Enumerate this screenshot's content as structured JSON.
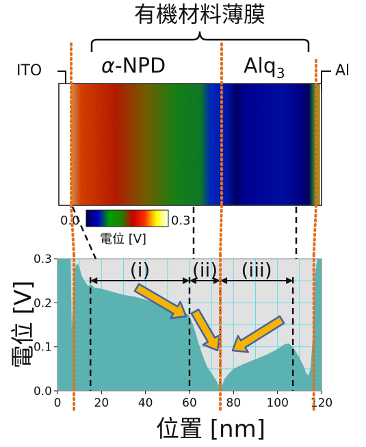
{
  "header": {
    "title": "有機材料薄膜",
    "layer_left_greek": "α",
    "layer_left_rest": "-NPD",
    "layer_right_base": "Alq",
    "layer_right_sub": "3",
    "electrode_left": "ITO",
    "electrode_right": "Al"
  },
  "colorbar": {
    "min_label": "0.0",
    "max_label": "0.3",
    "label": "電位 [V]",
    "stops": [
      "#00004a",
      "#0000c8",
      "#00a000",
      "#208000",
      "#c80000",
      "#ff3000",
      "#ffff00",
      "#ffffff"
    ]
  },
  "colors": {
    "fill": "#5ab3b1",
    "plot_bg": "#e1e1e1",
    "grid": "#5fe0ea",
    "electrode_line": "#e07020",
    "arrow_fill": "#f5b400",
    "arrow_stroke": "#4060a8"
  },
  "regions": [
    {
      "label": "(i)",
      "from": 15,
      "to": 60
    },
    {
      "label": "(ii)",
      "from": 60,
      "to": 74
    },
    {
      "label": "(iii)",
      "from": 74,
      "to": 107
    }
  ],
  "chart_data": {
    "type": "area",
    "xlabel": "位置 [nm]",
    "ylabel": "電位 [V]",
    "xlim": [
      0,
      120
    ],
    "ylim": [
      0,
      0.3
    ],
    "xticks": [
      "0",
      "20",
      "40",
      "60",
      "80",
      "100",
      "120"
    ],
    "yticks": [
      "0.0",
      "0.1",
      "0.2",
      "0.3"
    ],
    "grid": true,
    "x": [
      0,
      6,
      6.5,
      7,
      7.5,
      8,
      9,
      10,
      11,
      12,
      13,
      14,
      15,
      17,
      20,
      25,
      30,
      35,
      40,
      45,
      50,
      55,
      58,
      60,
      62,
      64,
      66,
      68,
      70,
      72,
      73,
      74,
      75,
      76,
      78,
      80,
      85,
      90,
      95,
      100,
      103,
      105,
      107,
      108,
      110,
      112,
      113,
      114,
      115,
      116,
      117,
      118,
      120
    ],
    "y": [
      0.3,
      0.3,
      0.14,
      0.2,
      0.26,
      0.28,
      0.29,
      0.28,
      0.262,
      0.252,
      0.245,
      0.238,
      0.242,
      0.234,
      0.232,
      0.225,
      0.218,
      0.214,
      0.207,
      0.2,
      0.195,
      0.185,
      0.178,
      0.17,
      0.145,
      0.11,
      0.08,
      0.055,
      0.04,
      0.025,
      0.015,
      0.01,
      0.015,
      0.028,
      0.04,
      0.05,
      0.062,
      0.072,
      0.082,
      0.095,
      0.105,
      0.108,
      0.1,
      0.092,
      0.075,
      0.055,
      0.04,
      0.035,
      0.05,
      0.12,
      0.26,
      0.3,
      0.3
    ],
    "boundaries": [
      15,
      60,
      74,
      107
    ],
    "electrode_edges": [
      7.5,
      116.5
    ]
  }
}
